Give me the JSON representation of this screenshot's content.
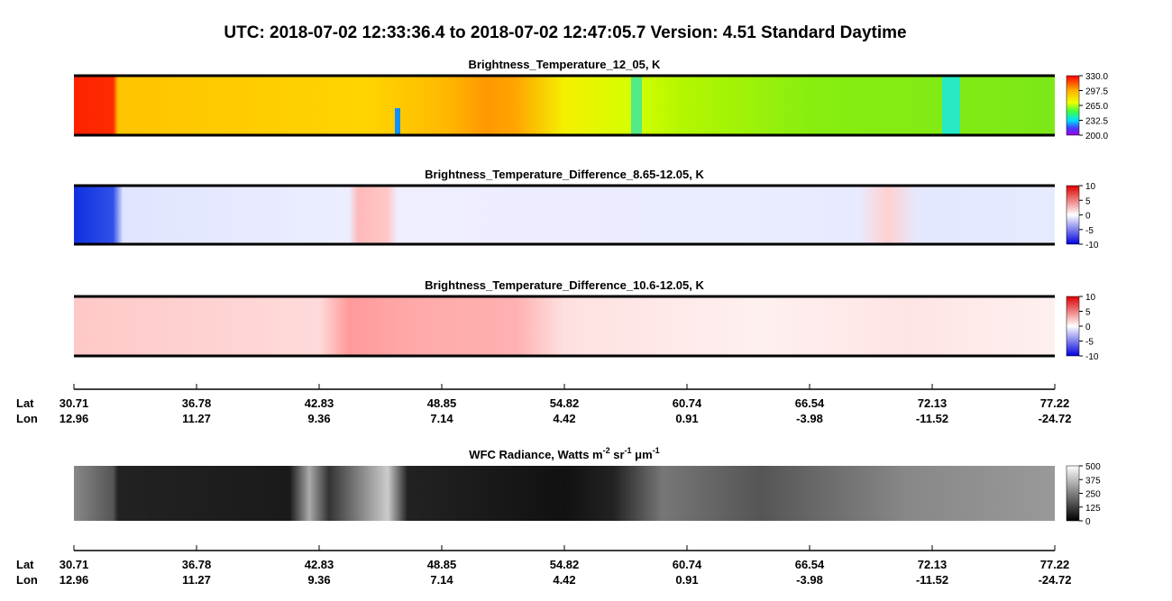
{
  "title": "UTC:  2018-07-02   12:33:36.4  to  2018-07-02   12:47:05.7    Version: 4.51  Standard Daytime",
  "panels": [
    {
      "title": "Brightness_Temperature_12_05, K",
      "colorbar": [
        "330.0",
        "297.5",
        "265.0",
        "232.5",
        "200.0"
      ]
    },
    {
      "title": "Brightness_Temperature_Difference_8.65-12.05, K",
      "colorbar": [
        "10",
        "5",
        "0",
        "-5",
        "-10"
      ]
    },
    {
      "title": "Brightness_Temperature_Difference_10.6-12.05, K",
      "colorbar": [
        "10",
        "5",
        "0",
        "-5",
        "-10"
      ]
    },
    {
      "title_parts": [
        "WFC Radiance, Watts m",
        "-2",
        " sr",
        "-1",
        " μm",
        "-1"
      ],
      "colorbar": [
        "500",
        "375",
        "250",
        "125",
        "0"
      ]
    }
  ],
  "axes": [
    {
      "lat_label": "Lat",
      "lon_label": "Lon",
      "lat": [
        "30.71",
        "36.78",
        "42.83",
        "48.85",
        "54.82",
        "60.74",
        "66.54",
        "72.13",
        "77.22"
      ],
      "lon": [
        "12.96",
        "11.27",
        "9.36",
        "7.14",
        "4.42",
        "0.91",
        "-3.98",
        "-11.52",
        "-24.72"
      ]
    },
    {
      "lat_label": "Lat",
      "lon_label": "Lon",
      "lat": [
        "30.71",
        "36.78",
        "42.83",
        "48.85",
        "54.82",
        "60.74",
        "66.54",
        "72.13",
        "77.22"
      ],
      "lon": [
        "12.96",
        "11.27",
        "9.36",
        "7.14",
        "4.42",
        "0.91",
        "-3.98",
        "-11.52",
        "-24.72"
      ]
    }
  ]
}
